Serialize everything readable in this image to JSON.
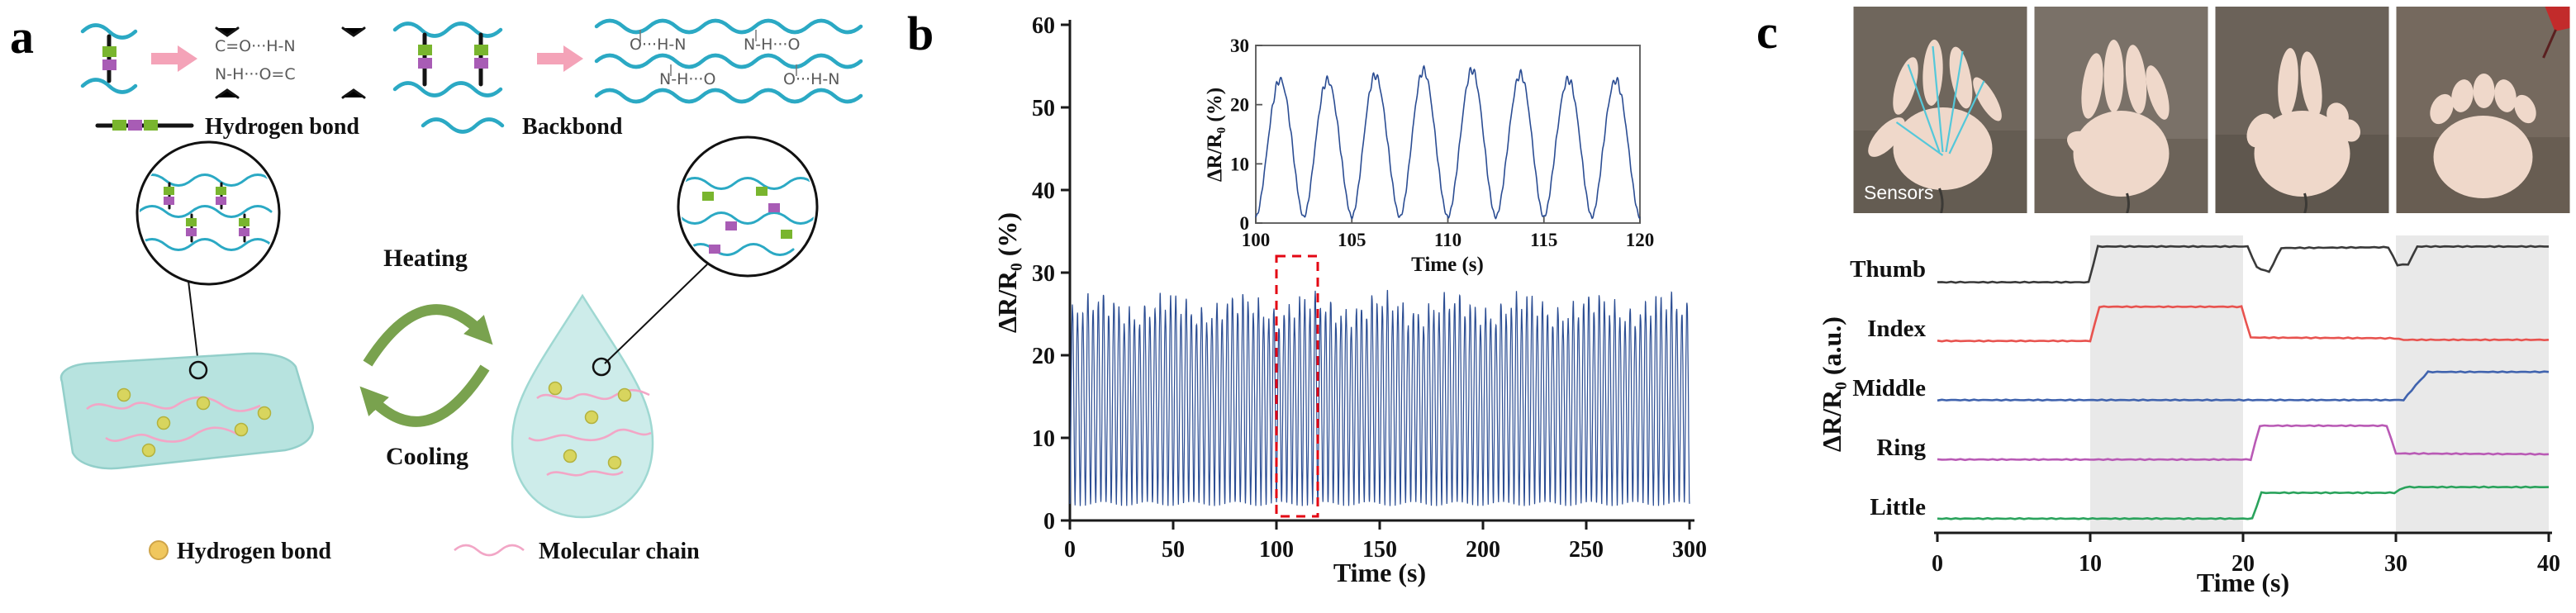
{
  "figure": {
    "kind": "three-panel scientific figure",
    "panel_labels": [
      "a",
      "b",
      "c"
    ]
  },
  "panels": {
    "a": {
      "label": "a",
      "legend_top": {
        "hydrogen_bond": "Hydrogen bond",
        "backbone": "Backbond"
      },
      "process": {
        "heating": "Heating",
        "cooling": "Cooling"
      },
      "legend_bottom": {
        "hydrogen_bond": "Hydrogen bond",
        "molecular_chain": "Molecular chain"
      },
      "chem_fragments": [
        "C=O···H-N",
        "N-H···O=C",
        "O···H-N",
        "N-H···O"
      ]
    },
    "b": {
      "label": "b"
    },
    "c": {
      "label": "c",
      "sensors_label": "Sensors"
    }
  },
  "colors": {
    "backbone_cyan": "#2ba9c4",
    "hbond_green": "#79b52e",
    "hbond_purple": "#a85cb5",
    "arrow_pink": "#f4a3b8",
    "process_arrow_green": "#79a24e",
    "gel_slab_fill": "#b7e3df",
    "droplet_fill": "#cdecea",
    "molecular_chain_pink": "#f2a6c6",
    "hbond_dot_yellow": "#f0c75e",
    "waveform_blue": "#2b4d93",
    "highlight_red": "#e30613",
    "shaded_band_gray": "#e9e9e9"
  },
  "chart_data": [
    {
      "id": "b_main",
      "type": "line",
      "xlabel": "Time (s)",
      "ylabel": "ΔR/R₀ (%)",
      "xlim": [
        0,
        300
      ],
      "ylim": [
        0,
        60
      ],
      "xticks": [
        0,
        50,
        100,
        150,
        200,
        250,
        300
      ],
      "yticks": [
        0,
        10,
        20,
        30,
        40,
        50,
        60
      ],
      "line_color": "#2b4d93",
      "grid": false,
      "waveform": {
        "shape": "periodic-peaks",
        "min": 2,
        "max": 25.5,
        "period_s": 2.5,
        "cycles": 120
      },
      "highlight_box": {
        "x": [
          100,
          120
        ],
        "y": [
          0.5,
          32
        ],
        "color": "#e30613",
        "style": "dashed"
      }
    },
    {
      "id": "b_inset",
      "type": "line",
      "xlabel": "Time (s)",
      "ylabel": "ΔR/R₀ (%)",
      "xlim": [
        100,
        120
      ],
      "ylim": [
        0,
        30
      ],
      "xticks": [
        100,
        105,
        110,
        115,
        120
      ],
      "yticks": [
        0,
        10,
        20,
        30
      ],
      "line_color": "#2b4d93",
      "grid": false,
      "waveform": {
        "shape": "periodic-peaks",
        "min": 1,
        "max": 25,
        "period_s": 2.5,
        "cycles": 8
      }
    },
    {
      "id": "c_fingers",
      "type": "line",
      "xlabel": "Time (s)",
      "ylabel": "ΔR/R₀ (a.u.)",
      "xlim": [
        0,
        40
      ],
      "xticks": [
        0,
        10,
        20,
        30,
        40
      ],
      "shaded_regions": [
        [
          10,
          20
        ],
        [
          30,
          40
        ]
      ],
      "series": [
        {
          "name": "Thumb",
          "color": "#3a3a3a",
          "points": [
            [
              0,
              0.03
            ],
            [
              9.9,
              0.03
            ],
            [
              10.5,
              0.97
            ],
            [
              20.3,
              0.97
            ],
            [
              20.9,
              0.42
            ],
            [
              21.7,
              0.3
            ],
            [
              22.5,
              0.93
            ],
            [
              29.5,
              0.95
            ],
            [
              30.1,
              0.48
            ],
            [
              30.8,
              0.5
            ],
            [
              31.4,
              0.97
            ],
            [
              40,
              0.97
            ]
          ]
        },
        {
          "name": "Index",
          "color": "#e8534f",
          "points": [
            [
              0,
              0.05
            ],
            [
              10.0,
              0.05
            ],
            [
              10.6,
              0.95
            ],
            [
              19.9,
              0.95
            ],
            [
              20.5,
              0.14
            ],
            [
              29.9,
              0.12
            ],
            [
              30.5,
              0.08
            ],
            [
              40,
              0.08
            ]
          ]
        },
        {
          "name": "Middle",
          "color": "#4063ae",
          "points": [
            [
              0,
              0.06
            ],
            [
              30.5,
              0.06
            ],
            [
              31.3,
              0.45
            ],
            [
              32.1,
              0.8
            ],
            [
              40,
              0.8
            ]
          ]
        },
        {
          "name": "Ring",
          "color": "#b95ab5",
          "points": [
            [
              0,
              0.06
            ],
            [
              20.5,
              0.06
            ],
            [
              21.1,
              0.95
            ],
            [
              29.4,
              0.95
            ],
            [
              30.0,
              0.22
            ],
            [
              40,
              0.2
            ]
          ]
        },
        {
          "name": "Little",
          "color": "#2aa35c",
          "points": [
            [
              0,
              0.07
            ],
            [
              20.6,
              0.07
            ],
            [
              21.2,
              0.75
            ],
            [
              29.9,
              0.75
            ],
            [
              30.6,
              0.9
            ],
            [
              40,
              0.9
            ]
          ]
        }
      ]
    }
  ]
}
